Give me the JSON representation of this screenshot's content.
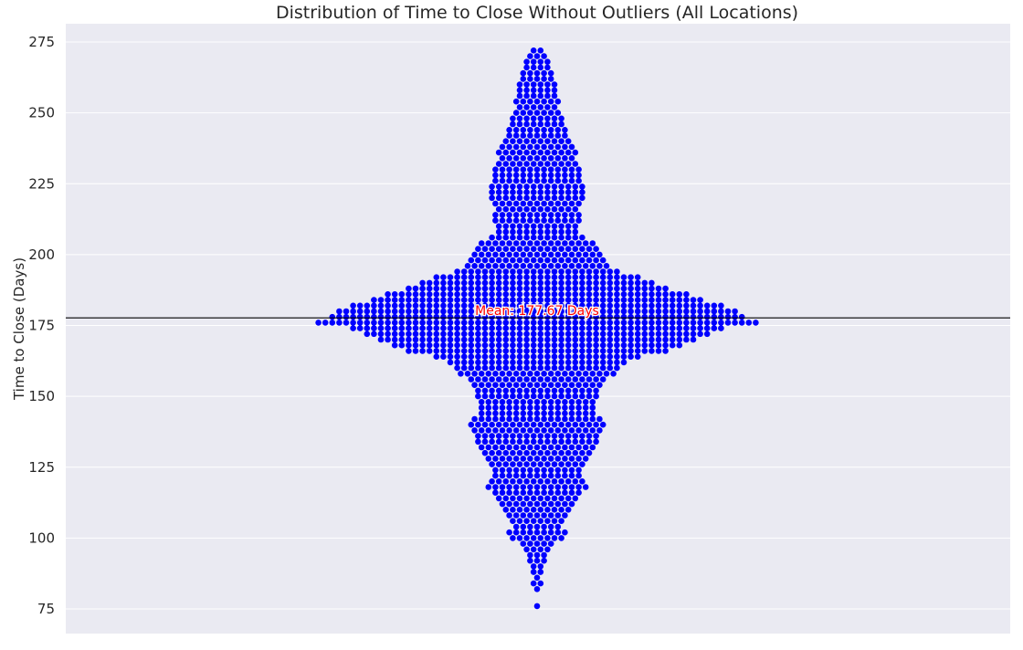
{
  "chart_data": {
    "type": "scatter",
    "subtype": "swarm",
    "title": "Distribution of Time to Close Without Outliers  (All Locations)",
    "xlabel": "",
    "ylabel": "Time to Close (Days)",
    "ylim": [
      70,
      278
    ],
    "yticks": [
      75,
      100,
      125,
      150,
      175,
      200,
      225,
      250,
      275
    ],
    "grid": true,
    "mean": {
      "value": 177.67,
      "label": "Mean: 177.67 Days"
    },
    "point_color": "#0000ff",
    "mean_line_color": "#000000",
    "mean_label_color": "#ff0000",
    "background": "#eaeaf2",
    "distribution_bins": [
      {
        "y": 76,
        "n": 1
      },
      {
        "y": 78,
        "n": 0
      },
      {
        "y": 80,
        "n": 0
      },
      {
        "y": 82,
        "n": 1
      },
      {
        "y": 84,
        "n": 2
      },
      {
        "y": 86,
        "n": 1
      },
      {
        "y": 88,
        "n": 2
      },
      {
        "y": 90,
        "n": 2
      },
      {
        "y": 92,
        "n": 3
      },
      {
        "y": 94,
        "n": 3
      },
      {
        "y": 96,
        "n": 4
      },
      {
        "y": 98,
        "n": 5
      },
      {
        "y": 100,
        "n": 8
      },
      {
        "y": 102,
        "n": 9
      },
      {
        "y": 104,
        "n": 7
      },
      {
        "y": 106,
        "n": 8
      },
      {
        "y": 108,
        "n": 9
      },
      {
        "y": 110,
        "n": 10
      },
      {
        "y": 112,
        "n": 11
      },
      {
        "y": 114,
        "n": 12
      },
      {
        "y": 116,
        "n": 13
      },
      {
        "y": 118,
        "n": 15
      },
      {
        "y": 120,
        "n": 14
      },
      {
        "y": 122,
        "n": 13
      },
      {
        "y": 124,
        "n": 13
      },
      {
        "y": 126,
        "n": 14
      },
      {
        "y": 128,
        "n": 15
      },
      {
        "y": 130,
        "n": 16
      },
      {
        "y": 132,
        "n": 17
      },
      {
        "y": 134,
        "n": 18
      },
      {
        "y": 136,
        "n": 18
      },
      {
        "y": 138,
        "n": 19
      },
      {
        "y": 140,
        "n": 20
      },
      {
        "y": 142,
        "n": 19
      },
      {
        "y": 144,
        "n": 17
      },
      {
        "y": 146,
        "n": 17
      },
      {
        "y": 148,
        "n": 17
      },
      {
        "y": 150,
        "n": 18
      },
      {
        "y": 152,
        "n": 18
      },
      {
        "y": 154,
        "n": 19
      },
      {
        "y": 156,
        "n": 20
      },
      {
        "y": 158,
        "n": 23
      },
      {
        "y": 160,
        "n": 24
      },
      {
        "y": 162,
        "n": 26
      },
      {
        "y": 164,
        "n": 30
      },
      {
        "y": 166,
        "n": 38
      },
      {
        "y": 168,
        "n": 42
      },
      {
        "y": 170,
        "n": 46
      },
      {
        "y": 172,
        "n": 50
      },
      {
        "y": 174,
        "n": 54
      },
      {
        "y": 176,
        "n": 64
      },
      {
        "y": 178,
        "n": 60
      },
      {
        "y": 180,
        "n": 58
      },
      {
        "y": 182,
        "n": 54
      },
      {
        "y": 184,
        "n": 48
      },
      {
        "y": 186,
        "n": 44
      },
      {
        "y": 188,
        "n": 38
      },
      {
        "y": 190,
        "n": 34
      },
      {
        "y": 192,
        "n": 30
      },
      {
        "y": 194,
        "n": 24
      },
      {
        "y": 196,
        "n": 21
      },
      {
        "y": 198,
        "n": 20
      },
      {
        "y": 200,
        "n": 19
      },
      {
        "y": 202,
        "n": 18
      },
      {
        "y": 204,
        "n": 17
      },
      {
        "y": 206,
        "n": 14
      },
      {
        "y": 208,
        "n": 12
      },
      {
        "y": 210,
        "n": 12
      },
      {
        "y": 212,
        "n": 13
      },
      {
        "y": 214,
        "n": 13
      },
      {
        "y": 216,
        "n": 12
      },
      {
        "y": 218,
        "n": 13
      },
      {
        "y": 220,
        "n": 14
      },
      {
        "y": 222,
        "n": 14
      },
      {
        "y": 224,
        "n": 14
      },
      {
        "y": 226,
        "n": 13
      },
      {
        "y": 228,
        "n": 13
      },
      {
        "y": 230,
        "n": 13
      },
      {
        "y": 232,
        "n": 12
      },
      {
        "y": 234,
        "n": 11
      },
      {
        "y": 236,
        "n": 12
      },
      {
        "y": 238,
        "n": 11
      },
      {
        "y": 240,
        "n": 10
      },
      {
        "y": 242,
        "n": 9
      },
      {
        "y": 244,
        "n": 9
      },
      {
        "y": 246,
        "n": 8
      },
      {
        "y": 248,
        "n": 8
      },
      {
        "y": 250,
        "n": 7
      },
      {
        "y": 252,
        "n": 6
      },
      {
        "y": 254,
        "n": 7
      },
      {
        "y": 256,
        "n": 6
      },
      {
        "y": 258,
        "n": 6
      },
      {
        "y": 260,
        "n": 6
      },
      {
        "y": 262,
        "n": 5
      },
      {
        "y": 264,
        "n": 5
      },
      {
        "y": 266,
        "n": 4
      },
      {
        "y": 268,
        "n": 4
      },
      {
        "y": 270,
        "n": 3
      },
      {
        "y": 272,
        "n": 2
      }
    ]
  }
}
